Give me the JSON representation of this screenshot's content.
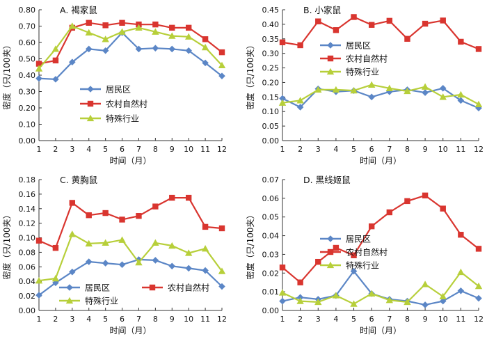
{
  "colors": {
    "residential": "#5b86c6",
    "rural": "#d9352f",
    "special": "#b7cf3a",
    "axis": "#333333"
  },
  "chart_data": [
    {
      "type": "line",
      "title": "A. 褐家鼠",
      "xlabel": "时间（月）",
      "ylabel": "密度（只/100夹）",
      "x": [
        1,
        2,
        3,
        4,
        5,
        6,
        7,
        8,
        9,
        10,
        11,
        12
      ],
      "ylim": [
        0,
        0.8
      ],
      "yticks": [
        "0.00",
        "0.10",
        "0.20",
        "0.30",
        "0.40",
        "0.50",
        "0.60",
        "0.70",
        "0.80"
      ],
      "ytick_values": [
        0,
        0.1,
        0.2,
        0.3,
        0.4,
        0.5,
        0.6,
        0.7,
        0.8
      ],
      "legend_position": "bottom-left",
      "legend_layout": "column",
      "series": [
        {
          "key": "residential",
          "name": "居民区",
          "marker": "diamond",
          "values": [
            0.38,
            0.375,
            0.48,
            0.56,
            0.55,
            0.66,
            0.56,
            0.565,
            0.56,
            0.55,
            0.475,
            0.395
          ]
        },
        {
          "key": "rural",
          "name": "农村自然村",
          "marker": "square",
          "values": [
            0.47,
            0.49,
            0.69,
            0.72,
            0.705,
            0.72,
            0.71,
            0.71,
            0.69,
            0.69,
            0.62,
            0.54
          ]
        },
        {
          "key": "special",
          "name": "特殊行业",
          "marker": "triangle",
          "values": [
            0.44,
            0.56,
            0.7,
            0.66,
            0.62,
            0.665,
            0.69,
            0.665,
            0.64,
            0.635,
            0.57,
            0.46
          ]
        }
      ]
    },
    {
      "type": "line",
      "title": "B. 小家鼠",
      "xlabel": "时间（月）",
      "ylabel": "密度（只/100夹）",
      "x": [
        1,
        2,
        3,
        4,
        5,
        6,
        7,
        8,
        9,
        10,
        11,
        12
      ],
      "ylim": [
        0,
        0.45
      ],
      "yticks": [
        "0.00",
        "0.05",
        "0.10",
        "0.15",
        "0.20",
        "0.25",
        "0.30",
        "0.35",
        "0.40",
        "0.45"
      ],
      "ytick_values": [
        0,
        0.05,
        0.1,
        0.15,
        0.2,
        0.25,
        0.3,
        0.35,
        0.4,
        0.45
      ],
      "legend_position": "center-left",
      "legend_layout": "column",
      "series": [
        {
          "key": "residential",
          "name": "居民区",
          "marker": "diamond",
          "values": [
            0.145,
            0.115,
            0.178,
            0.168,
            0.172,
            0.15,
            0.168,
            0.175,
            0.165,
            0.18,
            0.138,
            0.112
          ]
        },
        {
          "key": "rural",
          "name": "农村自然村",
          "marker": "square",
          "values": [
            0.338,
            0.328,
            0.41,
            0.38,
            0.425,
            0.398,
            0.412,
            0.35,
            0.402,
            0.413,
            0.34,
            0.315
          ]
        },
        {
          "key": "special",
          "name": "特殊行业",
          "marker": "triangle",
          "values": [
            0.13,
            0.138,
            0.175,
            0.175,
            0.172,
            0.192,
            0.18,
            0.17,
            0.185,
            0.15,
            0.158,
            0.125
          ]
        }
      ]
    },
    {
      "type": "line",
      "title": "C. 黄胸鼠",
      "xlabel": "时间（月）",
      "ylabel": "密度（只/100夹）",
      "x": [
        1,
        2,
        3,
        4,
        5,
        6,
        7,
        8,
        9,
        10,
        11,
        12
      ],
      "ylim": [
        0,
        0.18
      ],
      "yticks": [
        "0.00",
        "0.02",
        "0.04",
        "0.06",
        "0.08",
        "0.10",
        "0.12",
        "0.14",
        "0.16",
        "0.18"
      ],
      "ytick_values": [
        0,
        0.02,
        0.04,
        0.06,
        0.08,
        0.1,
        0.12,
        0.14,
        0.16,
        0.18
      ],
      "legend_position": "bottom",
      "legend_layout": "grid",
      "series": [
        {
          "key": "residential",
          "name": "居民区",
          "marker": "diamond",
          "values": [
            0.021,
            0.038,
            0.053,
            0.067,
            0.065,
            0.063,
            0.07,
            0.069,
            0.061,
            0.058,
            0.055,
            0.033
          ]
        },
        {
          "key": "rural",
          "name": "农村自然村",
          "marker": "square",
          "values": [
            0.096,
            0.086,
            0.148,
            0.131,
            0.134,
            0.125,
            0.13,
            0.143,
            0.155,
            0.155,
            0.115,
            0.113
          ]
        },
        {
          "key": "special",
          "name": "特殊行业",
          "marker": "triangle",
          "values": [
            0.041,
            0.044,
            0.105,
            0.092,
            0.093,
            0.097,
            0.066,
            0.093,
            0.089,
            0.079,
            0.085,
            0.054
          ]
        }
      ]
    },
    {
      "type": "line",
      "title": "D. 黑线姬鼠",
      "xlabel": "时间（月）",
      "ylabel": "密度（只/100夹）",
      "x": [
        1,
        2,
        3,
        4,
        5,
        6,
        7,
        8,
        9,
        10,
        11,
        12
      ],
      "ylim": [
        0,
        0.07
      ],
      "yticks": [
        "0.00",
        "0.01",
        "0.02",
        "0.03",
        "0.04",
        "0.05",
        "0.06",
        "0.07"
      ],
      "ytick_values": [
        0,
        0.01,
        0.02,
        0.03,
        0.04,
        0.05,
        0.06,
        0.07
      ],
      "legend_position": "center-left",
      "legend_layout": "column",
      "series": [
        {
          "key": "residential",
          "name": "居民区",
          "marker": "diamond",
          "values": [
            0.005,
            0.007,
            0.006,
            0.008,
            0.021,
            0.009,
            0.006,
            0.005,
            0.003,
            0.005,
            0.0105,
            0.0065
          ]
        },
        {
          "key": "rural",
          "name": "农村自然村",
          "marker": "square",
          "values": [
            0.023,
            0.015,
            0.026,
            0.0335,
            0.0295,
            0.045,
            0.0525,
            0.0585,
            0.0615,
            0.0545,
            0.0405,
            0.033
          ]
        },
        {
          "key": "special",
          "name": "特殊行业",
          "marker": "triangle",
          "values": [
            0.0095,
            0.005,
            0.0045,
            0.008,
            0.0035,
            0.009,
            0.0055,
            0.0045,
            0.014,
            0.0075,
            0.0205,
            0.013
          ]
        }
      ]
    }
  ]
}
